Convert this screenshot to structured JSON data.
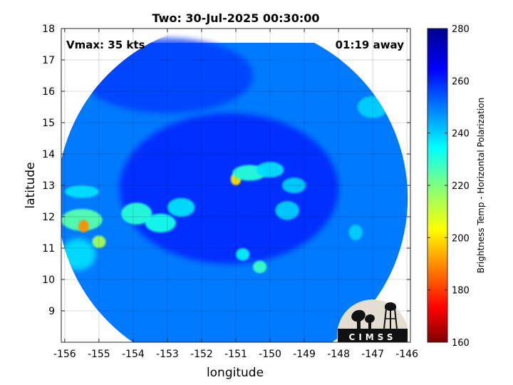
{
  "chart_data": {
    "type": "heatmap",
    "title": "Two: 30-Jul-2025 00:30:00",
    "xlabel": "longitude",
    "ylabel": "latitude",
    "xlim": [
      -156.1,
      -145.9
    ],
    "ylim": [
      8,
      18
    ],
    "x_ticks": [
      -156,
      -155,
      -154,
      -153,
      -152,
      -151,
      -150,
      -149,
      -148,
      -147,
      -146
    ],
    "x_tick_labels": [
      "-156",
      "-155",
      "-154",
      "-153",
      "-152",
      "-151",
      "-150",
      "-149",
      "-148",
      "-147",
      "-146"
    ],
    "y_ticks": [
      9,
      10,
      11,
      12,
      13,
      14,
      15,
      16,
      17,
      18
    ],
    "y_tick_labels": [
      "9",
      "10",
      "11",
      "12",
      "13",
      "14",
      "15",
      "16",
      "17",
      "18"
    ],
    "grid": true,
    "annotations": {
      "vmax": "Vmax: 35 kts",
      "time_offset": "01:19 away"
    },
    "colorbar": {
      "label": "Brightness Temp - Horizontal Polarization",
      "range": [
        160,
        280
      ],
      "ticks": [
        160,
        180,
        200,
        220,
        240,
        260,
        280
      ],
      "tick_labels": [
        "160",
        "180",
        "200",
        "220",
        "240",
        "260",
        "280"
      ],
      "colormap": "jet"
    },
    "swath": {
      "center_lon": -151.1,
      "center_lat": 12.6,
      "background_value": 250
    },
    "features": [
      {
        "lon": -151.2,
        "lat": 12.9,
        "value": 262,
        "spread_lon": 3.2,
        "spread_lat": 2.4
      },
      {
        "lon": -153.0,
        "lat": 16.5,
        "value": 258,
        "spread_lon": 2.5,
        "spread_lat": 1.2
      },
      {
        "lon": -155.5,
        "lat": 11.9,
        "value": 225,
        "spread_lon": 0.6,
        "spread_lat": 0.35
      },
      {
        "lon": -155.45,
        "lat": 11.7,
        "value": 190,
        "spread_lon": 0.15,
        "spread_lat": 0.2
      },
      {
        "lon": -155.0,
        "lat": 11.2,
        "value": 215,
        "spread_lon": 0.2,
        "spread_lat": 0.2
      },
      {
        "lon": -155.6,
        "lat": 10.8,
        "value": 235,
        "spread_lon": 0.5,
        "spread_lat": 0.5
      },
      {
        "lon": -155.5,
        "lat": 12.8,
        "value": 238,
        "spread_lon": 0.5,
        "spread_lat": 0.2
      },
      {
        "lon": -153.9,
        "lat": 12.1,
        "value": 230,
        "spread_lon": 0.45,
        "spread_lat": 0.35
      },
      {
        "lon": -153.2,
        "lat": 11.8,
        "value": 232,
        "spread_lon": 0.45,
        "spread_lat": 0.3
      },
      {
        "lon": -152.6,
        "lat": 12.3,
        "value": 238,
        "spread_lon": 0.4,
        "spread_lat": 0.3
      },
      {
        "lon": -151.0,
        "lat": 13.2,
        "value": 200,
        "spread_lon": 0.15,
        "spread_lat": 0.2
      },
      {
        "lon": -150.6,
        "lat": 13.4,
        "value": 230,
        "spread_lon": 0.5,
        "spread_lat": 0.25
      },
      {
        "lon": -150.0,
        "lat": 13.5,
        "value": 238,
        "spread_lon": 0.4,
        "spread_lat": 0.25
      },
      {
        "lon": -149.3,
        "lat": 13.0,
        "value": 240,
        "spread_lon": 0.35,
        "spread_lat": 0.25
      },
      {
        "lon": -149.5,
        "lat": 12.2,
        "value": 240,
        "spread_lon": 0.35,
        "spread_lat": 0.3
      },
      {
        "lon": -150.3,
        "lat": 10.4,
        "value": 228,
        "spread_lon": 0.2,
        "spread_lat": 0.2
      },
      {
        "lon": -150.8,
        "lat": 10.8,
        "value": 236,
        "spread_lon": 0.2,
        "spread_lat": 0.2
      },
      {
        "lon": -147.5,
        "lat": 11.5,
        "value": 240,
        "spread_lon": 0.2,
        "spread_lat": 0.25
      },
      {
        "lon": -147.0,
        "lat": 15.5,
        "value": 240,
        "spread_lon": 0.45,
        "spread_lat": 0.35
      }
    ]
  },
  "logo": {
    "text": "CIMSS"
  }
}
